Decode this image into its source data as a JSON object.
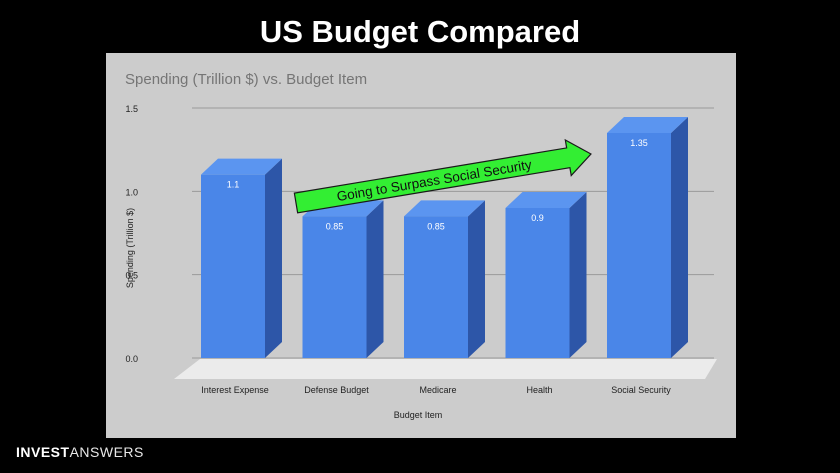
{
  "slide": {
    "title": "US Budget Compared"
  },
  "brand": {
    "part1": "INVEST",
    "part2": "ANSWERS"
  },
  "chart_data": {
    "type": "bar",
    "title": "Spending (Trillion $) vs. Budget Item",
    "xlabel": "Budget Item",
    "ylabel": "Spending (Trillion $)",
    "categories": [
      "Interest Expense",
      "Defense Budget",
      "Medicare",
      "Health",
      "Social Security"
    ],
    "values": [
      1.1,
      0.85,
      0.85,
      0.9,
      1.35
    ],
    "data_labels": [
      "1.1",
      "0.85",
      "0.85",
      "0.9",
      "1.35"
    ],
    "ylim": [
      0,
      1.5
    ],
    "yticks": [
      "0.0",
      "0.5",
      "1.0",
      "1.5"
    ],
    "grid": true,
    "style": "3d",
    "colors": {
      "bar_front": "#4a86e8",
      "bar_side": "#2d56a8",
      "bar_top": "#5b95f0",
      "panel_background": "#cccccc",
      "floor": "#ebebeb"
    },
    "annotation": {
      "text": "Going to Surpass Social Security",
      "color": "#33ee33"
    }
  }
}
